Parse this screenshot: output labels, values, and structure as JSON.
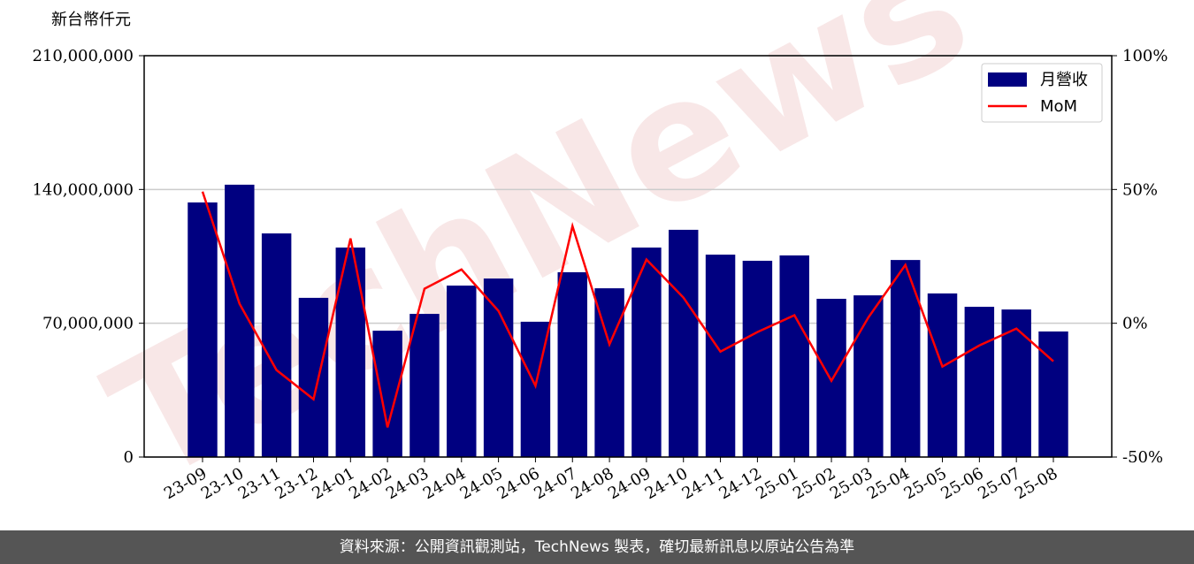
{
  "chart_data": {
    "type": "bar-line",
    "unit_label": "新台幣仟元",
    "watermark": "TechNews",
    "categories": [
      "23-09",
      "23-10",
      "23-11",
      "23-12",
      "24-01",
      "24-02",
      "24-03",
      "24-04",
      "24-05",
      "24-06",
      "24-07",
      "24-08",
      "24-09",
      "24-10",
      "24-11",
      "24-12",
      "25-01",
      "25-02",
      "25-03",
      "25-04",
      "25-05",
      "25-06",
      "25-07",
      "25-08"
    ],
    "series": [
      {
        "name": "月營收",
        "color": "#000080",
        "type": "bar",
        "values": [
          133200000,
          142500000,
          117000000,
          83300000,
          109600000,
          66100000,
          74900000,
          89700000,
          93400000,
          70800000,
          96700000,
          88300000,
          109600000,
          118900000,
          105900000,
          102700000,
          105500000,
          82800000,
          84600000,
          103100000,
          85600000,
          78600000,
          77200000,
          65700000
        ]
      },
      {
        "name": "MoM",
        "color": "#ff0000",
        "type": "line",
        "axis": "y2",
        "values": [
          49.2,
          7.3,
          -17.5,
          -28.4,
          31.7,
          -38.9,
          12.9,
          20.1,
          4.6,
          -23.4,
          36.3,
          -7.9,
          23.8,
          9.6,
          -10.6,
          -3.3,
          3.0,
          -21.5,
          2.2,
          21.8,
          -16.2,
          -8.3,
          -2.0,
          -14.2
        ]
      }
    ],
    "ylim": [
      0,
      210000000
    ],
    "yticks": [
      {
        "value": 0,
        "label": "0"
      },
      {
        "value": 70000000,
        "label": "70,000,000"
      },
      {
        "value": 140000000,
        "label": "140,000,000"
      },
      {
        "value": 210000000,
        "label": "210,000,000"
      }
    ],
    "y2lim": [
      -50,
      100
    ],
    "y2ticks": [
      {
        "value": -50,
        "label": "-50%"
      },
      {
        "value": 0,
        "label": "0%"
      },
      {
        "value": 50,
        "label": "50%"
      },
      {
        "value": 100,
        "label": "100%"
      }
    ],
    "grid": true,
    "legend": "upper right"
  },
  "footer": "資料來源：公開資訊觀測站，TechNews 製表，確切最新訊息以原站公告為準"
}
